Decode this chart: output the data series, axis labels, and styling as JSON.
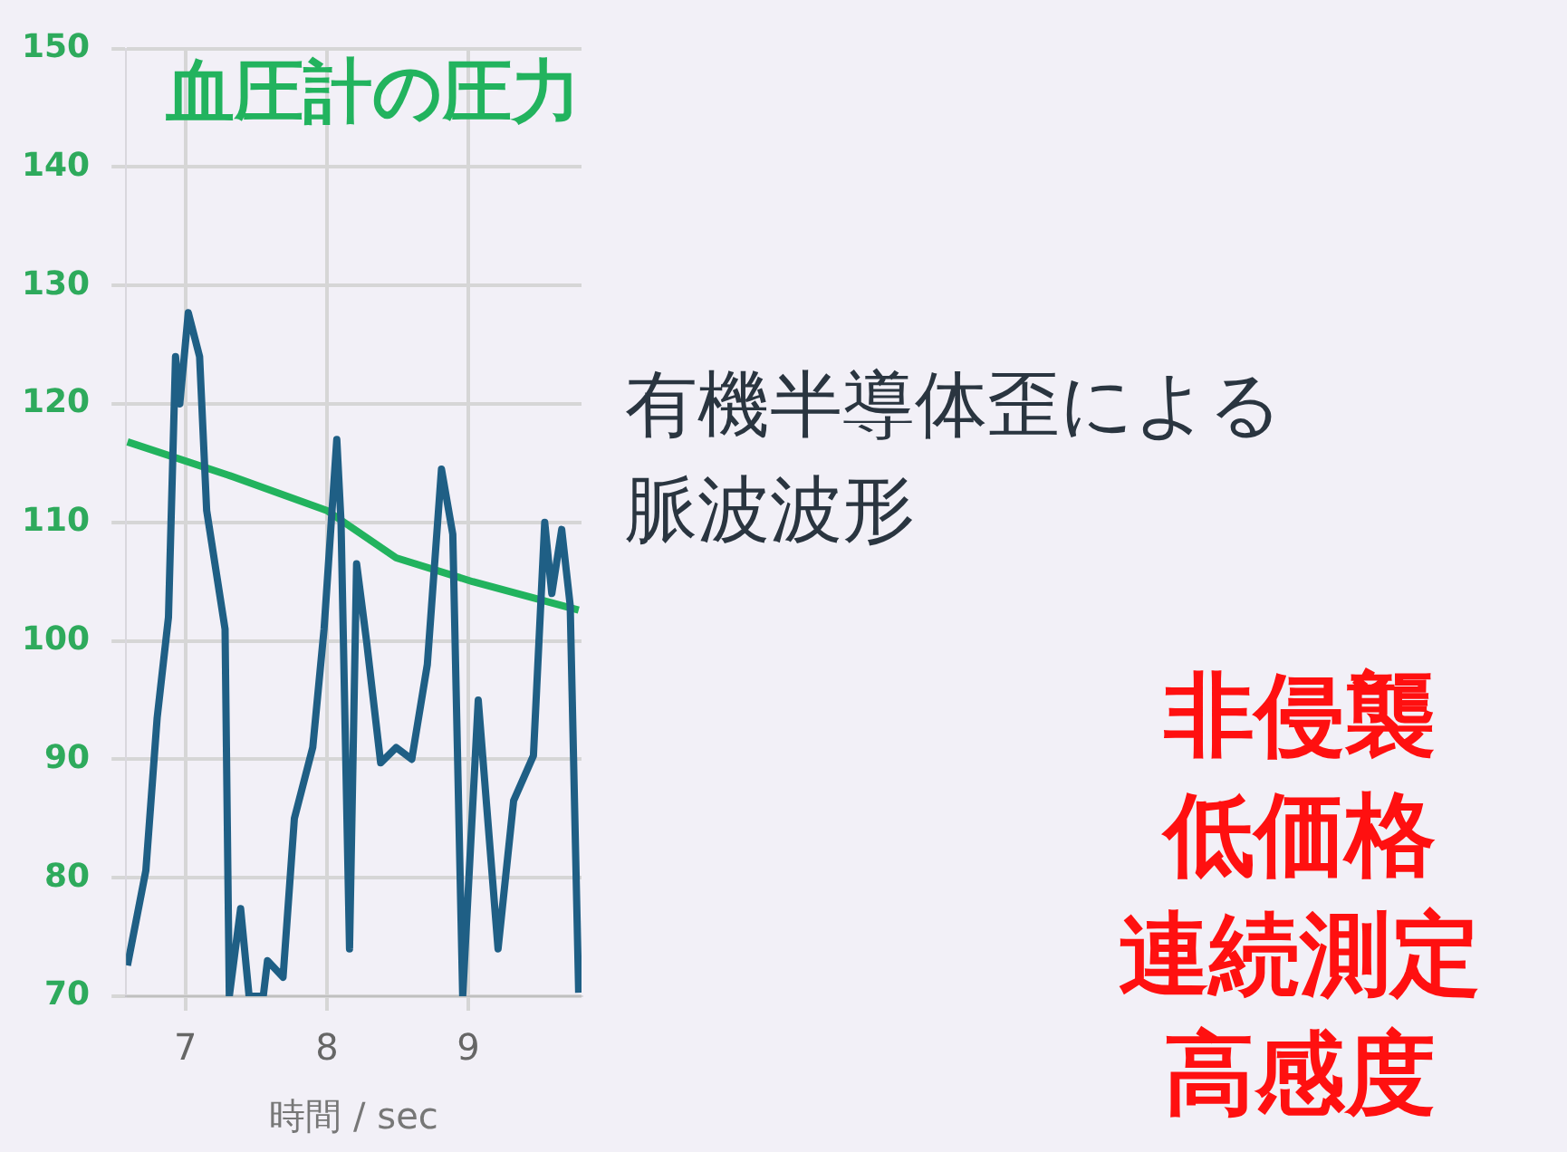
{
  "chart_data": {
    "type": "line",
    "title": "血圧計の圧力",
    "xlabel": "時間 / sec",
    "xlim": [
      6.58,
      9.8
    ],
    "xticks": [
      7,
      8,
      9
    ],
    "ylim": [
      70,
      150
    ],
    "yticks": [
      70,
      80,
      90,
      100,
      110,
      120,
      130,
      140,
      150
    ],
    "grid": true,
    "marker": "none",
    "line_style": "solid",
    "series": [
      {
        "color": "#1f5f85",
        "x": [
          6.59,
          6.72,
          6.8,
          6.88,
          6.93,
          6.96,
          7.02,
          7.1,
          7.15,
          7.28,
          7.31,
          7.39,
          7.45,
          7.55,
          7.58,
          7.69,
          7.77,
          7.9,
          7.98,
          8.07,
          8.1,
          8.16,
          8.21,
          8.28,
          8.38,
          8.49,
          8.6,
          8.71,
          8.81,
          8.89,
          8.96,
          9.07,
          9.13,
          9.21,
          9.32,
          9.46,
          9.54,
          9.59,
          9.66,
          9.72,
          9.78
        ],
        "values": [
          72.6,
          80.6,
          93.5,
          102,
          124,
          120,
          127.7,
          124,
          111,
          101,
          70,
          77.4,
          70,
          70,
          73,
          71.6,
          85,
          91,
          101,
          117,
          110,
          74,
          106.5,
          100,
          89.7,
          91,
          90,
          98,
          114.5,
          109,
          70,
          95,
          86,
          74,
          86.5,
          90.3,
          110,
          104,
          109.4,
          103,
          70.3
        ]
      },
      {
        "color": "#22b35e",
        "x": [
          6.59,
          7.3,
          8.0,
          8.49,
          9.03,
          9.78
        ],
        "values": [
          116.8,
          114,
          111,
          107,
          105,
          102.6
        ]
      }
    ],
    "annotations": [
      "有機半導体歪による脈波波形",
      "非侵襲",
      "低価格",
      "連続測定",
      "高感度"
    ]
  }
}
